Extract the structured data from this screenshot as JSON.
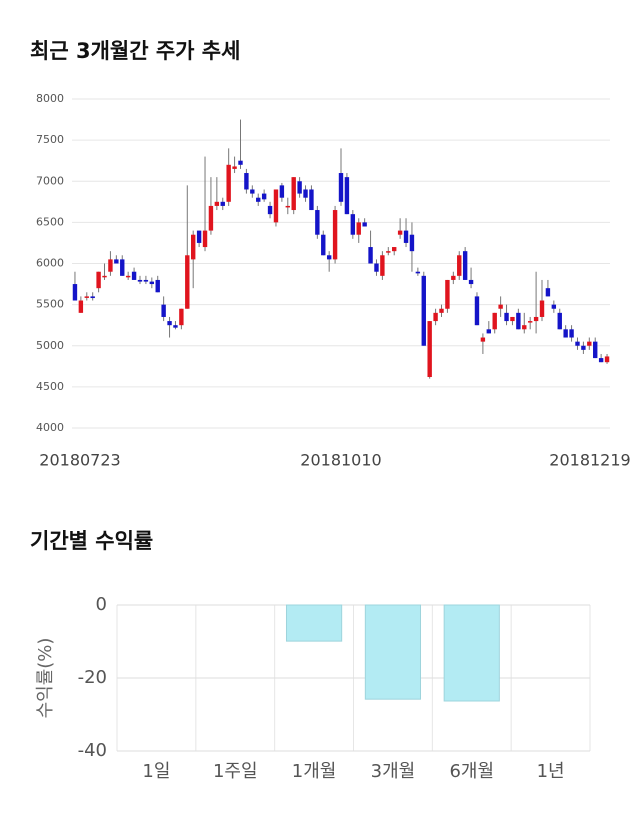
{
  "chart_data": [
    {
      "type": "candlestick",
      "title": "최근 3개월간 주가 추세",
      "categories": [
        "20180723",
        null,
        null,
        null,
        null,
        null,
        null,
        null,
        null,
        null,
        null,
        null,
        null,
        null,
        null,
        null,
        null,
        null,
        null,
        null,
        null,
        null,
        null,
        null,
        null,
        null,
        null,
        null,
        null,
        null,
        null,
        null,
        null,
        null,
        null,
        null,
        null,
        null,
        null,
        null,
        null,
        null,
        null,
        null,
        null,
        "20181010",
        null,
        null,
        null,
        null,
        null,
        null,
        null,
        null,
        null,
        null,
        null,
        null,
        null,
        null,
        null,
        null,
        null,
        null,
        null,
        null,
        null,
        null,
        null,
        null,
        null,
        null,
        null,
        null,
        null,
        null,
        null,
        null,
        null,
        null,
        null,
        null,
        null,
        null,
        null,
        null,
        null,
        null,
        null,
        null,
        "20181219"
      ],
      "ohlc": [
        [
          5750,
          5900,
          5550,
          5550
        ],
        [
          5400,
          5600,
          5400,
          5550
        ],
        [
          5600,
          5650,
          5550,
          5600
        ],
        [
          5600,
          5650,
          5550,
          5580
        ],
        [
          5700,
          5900,
          5650,
          5900
        ],
        [
          5850,
          6000,
          5800,
          5850
        ],
        [
          5900,
          6150,
          5850,
          6050
        ],
        [
          6050,
          6100,
          6000,
          6000
        ],
        [
          6050,
          6100,
          5850,
          5850
        ],
        [
          5850,
          5900,
          5800,
          5850
        ],
        [
          5900,
          5950,
          5800,
          5800
        ],
        [
          5800,
          5850,
          5750,
          5780
        ],
        [
          5800,
          5850,
          5750,
          5780
        ],
        [
          5780,
          5830,
          5700,
          5750
        ],
        [
          5800,
          5850,
          5650,
          5650
        ],
        [
          5500,
          5600,
          5300,
          5350
        ],
        [
          5300,
          5350,
          5100,
          5250
        ],
        [
          5250,
          5300,
          5200,
          5220
        ],
        [
          5250,
          5450,
          5200,
          5450
        ],
        [
          5450,
          6950,
          5450,
          6100
        ],
        [
          6050,
          6400,
          5700,
          6350
        ],
        [
          6400,
          6400,
          6200,
          6250
        ],
        [
          6200,
          7300,
          6150,
          6400
        ],
        [
          6400,
          7050,
          6350,
          6700
        ],
        [
          6700,
          7050,
          6650,
          6750
        ],
        [
          6750,
          6800,
          6650,
          6700
        ],
        [
          6750,
          7400,
          6700,
          7200
        ],
        [
          7150,
          7300,
          7100,
          7180
        ],
        [
          7250,
          7750,
          7150,
          7200
        ],
        [
          7100,
          7150,
          6850,
          6900
        ],
        [
          6900,
          6950,
          6800,
          6850
        ],
        [
          6800,
          6850,
          6700,
          6750
        ],
        [
          6850,
          6900,
          6750,
          6780
        ],
        [
          6700,
          6750,
          6550,
          6600
        ],
        [
          6500,
          6900,
          6450,
          6900
        ],
        [
          6950,
          6980,
          6750,
          6800
        ],
        [
          6700,
          6800,
          6600,
          6700
        ],
        [
          6650,
          7050,
          6600,
          7050
        ],
        [
          7000,
          7050,
          6800,
          6850
        ],
        [
          6900,
          6950,
          6750,
          6800
        ],
        [
          6900,
          6950,
          6650,
          6650
        ],
        [
          6650,
          6700,
          6300,
          6350
        ],
        [
          6350,
          6400,
          6100,
          6100
        ],
        [
          6100,
          6150,
          5900,
          6050
        ],
        [
          6050,
          6700,
          6000,
          6650
        ],
        [
          7100,
          7400,
          6700,
          6750
        ],
        [
          7050,
          7100,
          6600,
          6600
        ],
        [
          6600,
          6650,
          6300,
          6350
        ],
        [
          6350,
          6550,
          6250,
          6500
        ],
        [
          6500,
          6550,
          6450,
          6450
        ],
        [
          6200,
          6400,
          6000,
          6000
        ],
        [
          6000,
          6050,
          5850,
          5900
        ],
        [
          5850,
          6150,
          5800,
          6100
        ],
        [
          6150,
          6200,
          6100,
          6150
        ],
        [
          6150,
          6200,
          6100,
          6200
        ],
        [
          6350,
          6550,
          6300,
          6400
        ],
        [
          6400,
          6550,
          6200,
          6250
        ],
        [
          6350,
          6500,
          5900,
          6150
        ],
        [
          5900,
          5950,
          5850,
          5880
        ],
        [
          5850,
          5900,
          5000,
          5000
        ],
        [
          4620,
          5300,
          4600,
          5300
        ],
        [
          5300,
          5450,
          5250,
          5400
        ],
        [
          5400,
          5500,
          5350,
          5450
        ],
        [
          5450,
          5800,
          5400,
          5800
        ],
        [
          5800,
          5900,
          5750,
          5850
        ],
        [
          5850,
          6150,
          5800,
          6100
        ],
        [
          6150,
          6200,
          5800,
          5800
        ],
        [
          5800,
          5950,
          5700,
          5750
        ],
        [
          5600,
          5650,
          5250,
          5250
        ],
        [
          5050,
          5150,
          4900,
          5100
        ],
        [
          5200,
          5300,
          5150,
          5150
        ],
        [
          5200,
          5400,
          5150,
          5400
        ],
        [
          5450,
          5600,
          5350,
          5500
        ],
        [
          5400,
          5500,
          5250,
          5300
        ],
        [
          5300,
          5350,
          5250,
          5350
        ],
        [
          5400,
          5450,
          5200,
          5200
        ],
        [
          5200,
          5400,
          5150,
          5250
        ],
        [
          5300,
          5350,
          5200,
          5300
        ],
        [
          5300,
          5900,
          5150,
          5350
        ],
        [
          5350,
          5800,
          5300,
          5550
        ],
        [
          5700,
          5800,
          5600,
          5600
        ],
        [
          5500,
          5550,
          5400,
          5450
        ],
        [
          5400,
          5450,
          5200,
          5200
        ],
        [
          5200,
          5250,
          5100,
          5100
        ],
        [
          5200,
          5250,
          5050,
          5100
        ],
        [
          5050,
          5100,
          4950,
          5000
        ],
        [
          5000,
          5050,
          4900,
          4950
        ],
        [
          5000,
          5100,
          4950,
          5050
        ],
        [
          5050,
          5100,
          4850,
          4850
        ],
        [
          4850,
          4900,
          4800,
          4800
        ],
        [
          4800,
          4900,
          4780,
          4870
        ]
      ],
      "up_color": "#e0141e",
      "down_color": "#1414c8",
      "ylim": [
        4000,
        8000
      ],
      "yticks": [
        4000,
        4500,
        5000,
        5500,
        6000,
        6500,
        7000,
        7500,
        8000
      ],
      "grid": true
    },
    {
      "type": "bar",
      "title": "기간별 수익률",
      "ylabel": "수익률(%)",
      "categories": [
        "1일",
        "1주일",
        "1개월",
        "3개월",
        "6개월",
        "1년"
      ],
      "values": [
        null,
        null,
        -9.9,
        -25.8,
        -26.3,
        null
      ],
      "color": "#b3ebf3",
      "ylim": [
        -40,
        0
      ],
      "yticks": [
        0,
        -20,
        -40
      ],
      "grid": true
    }
  ]
}
